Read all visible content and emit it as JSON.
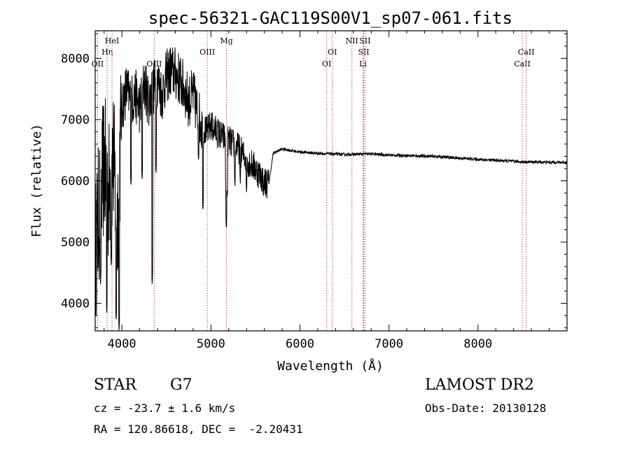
{
  "chart_data": {
    "type": "line",
    "title": "spec-56321-GAC119S00V1_sp07-061.fits",
    "xlabel": "Wavelength (Å)",
    "ylabel": "Flux (relative)",
    "xlim": [
      3700,
      9000
    ],
    "ylim": [
      3550,
      8450
    ],
    "xticks": [
      4000,
      5000,
      6000,
      7000,
      8000
    ],
    "yticks": [
      4000,
      5000,
      6000,
      7000,
      8000
    ],
    "grid": false,
    "line_color": "#000000",
    "marker_color": "#c0504d",
    "spectrum_trend": {
      "x": [
        3700,
        3750,
        3800,
        3850,
        3900,
        3950,
        4000,
        4050,
        4100,
        4150,
        4200,
        4250,
        4300,
        4350,
        4400,
        4450,
        4500,
        4550,
        4600,
        4650,
        4700,
        4750,
        4800,
        4850,
        4900,
        4950,
        5000,
        5100,
        5200,
        5300,
        5400,
        5500,
        5600,
        5650,
        5700,
        5800,
        6000,
        6200,
        6500,
        6800,
        7000,
        7500,
        8000,
        8500,
        9000
      ],
      "y": [
        4800,
        5600,
        6300,
        5800,
        6400,
        5400,
        7200,
        7500,
        7300,
        7400,
        7200,
        7600,
        7300,
        7500,
        7650,
        7400,
        7700,
        7800,
        7750,
        7650,
        7500,
        7300,
        7400,
        7100,
        6900,
        6800,
        6900,
        6750,
        6650,
        6550,
        6350,
        6200,
        6000,
        5950,
        6450,
        6520,
        6470,
        6450,
        6430,
        6440,
        6420,
        6400,
        6350,
        6310,
        6300
      ]
    },
    "absorption_dips": [
      {
        "x": 3760,
        "y": 4300
      },
      {
        "x": 3830,
        "y": 3850
      },
      {
        "x": 3880,
        "y": 4600
      },
      {
        "x": 3935,
        "y": 3700
      },
      {
        "x": 3968,
        "y": 3550
      },
      {
        "x": 4102,
        "y": 5900
      },
      {
        "x": 4227,
        "y": 6000
      },
      {
        "x": 4340,
        "y": 4300
      },
      {
        "x": 4383,
        "y": 6100
      },
      {
        "x": 4861,
        "y": 6300
      },
      {
        "x": 4910,
        "y": 5500
      },
      {
        "x": 5167,
        "y": 5900
      },
      {
        "x": 5173,
        "y": 5200
      },
      {
        "x": 5183,
        "y": 5700
      },
      {
        "x": 5270,
        "y": 5900
      },
      {
        "x": 5330,
        "y": 5950
      },
      {
        "x": 5400,
        "y": 5800
      },
      {
        "x": 5590,
        "y": 5750
      }
    ],
    "line_markers": [
      {
        "label": "OII",
        "x": 3727,
        "row": 3
      },
      {
        "label": "Hη",
        "x": 3835,
        "row": 2
      },
      {
        "label": "HeI",
        "x": 3889,
        "row": 1
      },
      {
        "label": "OIII",
        "x": 4363,
        "row": 3
      },
      {
        "label": "OIII",
        "x": 4959,
        "row": 2
      },
      {
        "label": "Mg",
        "x": 5175,
        "row": 1
      },
      {
        "label": "OI",
        "x": 6300,
        "row": 3
      },
      {
        "label": "OI",
        "x": 6364,
        "row": 2
      },
      {
        "label": "NII",
        "x": 6584,
        "row": 1
      },
      {
        "label": "SII",
        "x": 6716,
        "row": 2
      },
      {
        "label": "Li",
        "x": 6708,
        "row": 3
      },
      {
        "label": "SII",
        "x": 6731,
        "row": 1
      },
      {
        "label": "CaII",
        "x": 8498,
        "row": 3
      },
      {
        "label": "CaII",
        "x": 8542,
        "row": 2
      }
    ]
  },
  "info": {
    "class_label": "STAR",
    "subclass": "G7",
    "survey": "LAMOST DR2",
    "redshift": "cz = -23.7 ± 1.6 km/s",
    "obs_date": "Obs-Date: 20130128",
    "coords": "RA = 120.86618, DEC =  -2.20431"
  }
}
